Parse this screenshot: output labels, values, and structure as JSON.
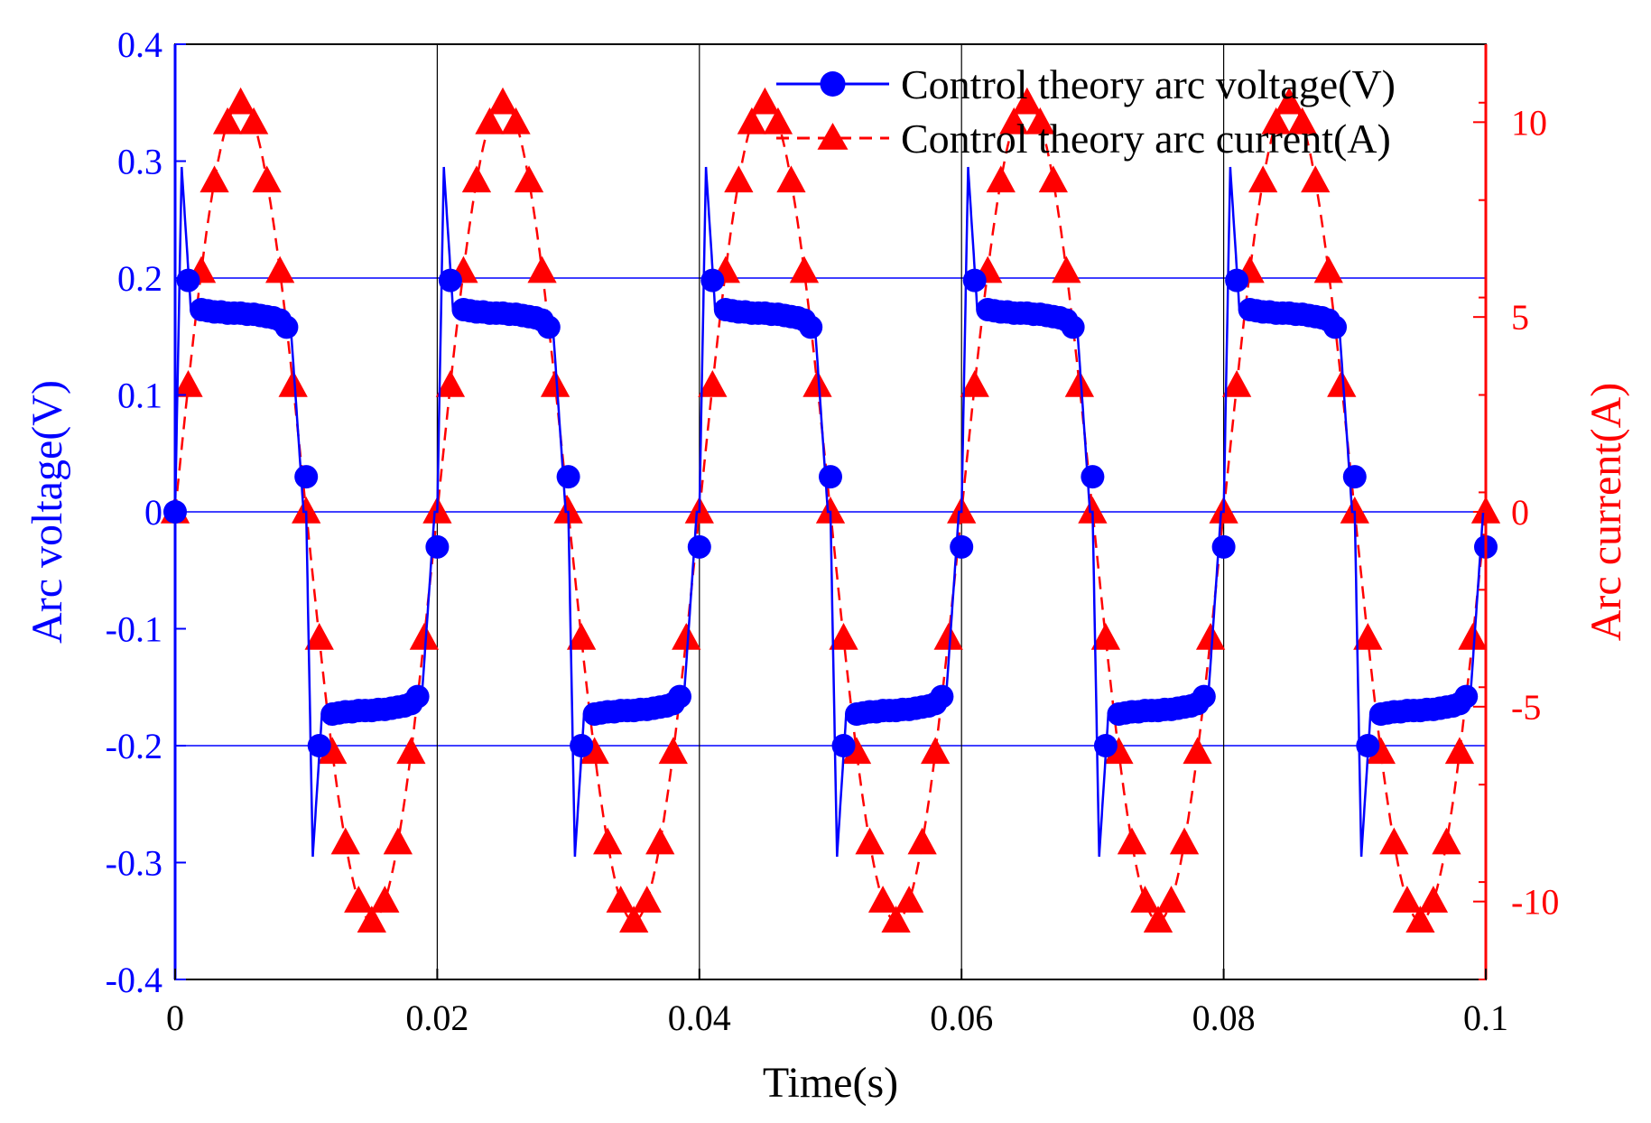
{
  "chart_data": {
    "type": "line",
    "title": "",
    "xlabel": "Time(s)",
    "ylabel_left": "Arc voltage(V)",
    "ylabel_right": "Arc current(A)",
    "xlim": [
      0,
      0.1
    ],
    "ylim_left": [
      -0.4,
      0.4
    ],
    "ylim_right": [
      -12,
      12
    ],
    "x_ticks": [
      "0",
      "0.02",
      "0.04",
      "0.06",
      "0.08",
      "0.1"
    ],
    "y_left_ticks": [
      "-0.4",
      "-0.3",
      "-0.2",
      "-0.1",
      "0",
      "0.1",
      "0.2",
      "0.3",
      "0.4"
    ],
    "y_right_ticks": [
      "-10",
      "-5",
      "0",
      "5",
      "10"
    ],
    "left_axis_color": "#0000ff",
    "right_axis_color": "#ff0000",
    "reference_lines_left": [
      0.2,
      0,
      -0.2
    ],
    "vertical_gridlines_x": [
      0.02,
      0.04,
      0.06,
      0.08
    ],
    "legend_position": "top-right",
    "series": [
      {
        "name": "Control theory arc voltage(V)",
        "axis": "left",
        "color": "#0000ff",
        "line_style": "solid",
        "marker": "circle",
        "period": 0.02,
        "marker_x": [
          0,
          0.001,
          0.002,
          0.0025,
          0.003,
          0.0035,
          0.004,
          0.0045,
          0.005,
          0.0055,
          0.006,
          0.0065,
          0.007,
          0.0075,
          0.008,
          0.0085,
          0.01,
          0.011,
          0.012,
          0.0125,
          0.013,
          0.0135,
          0.014,
          0.0145,
          0.015,
          0.0155,
          0.016,
          0.0165,
          0.017,
          0.0175,
          0.018,
          0.0185,
          0.02
        ],
        "marker_values": [
          0,
          0.198,
          0.173,
          0.172,
          0.171,
          0.171,
          0.17,
          0.17,
          0.17,
          0.169,
          0.169,
          0.168,
          0.167,
          0.166,
          0.164,
          0.158,
          0.03,
          -0.2,
          -0.173,
          -0.172,
          -0.171,
          -0.171,
          -0.17,
          -0.17,
          -0.17,
          -0.169,
          -0.169,
          -0.168,
          -0.167,
          -0.166,
          -0.164,
          -0.158,
          -0.03
        ],
        "spike_peak": 0.295,
        "plateau_start": 0.173,
        "plateau_end": 0.162
      },
      {
        "name": "Control theory arc current(A)",
        "axis": "right",
        "color": "#ff0000",
        "line_style": "dashed",
        "marker": "triangle",
        "amplitude": 10.5,
        "frequency_hz": 50,
        "marker_step": 0.001
      }
    ]
  }
}
